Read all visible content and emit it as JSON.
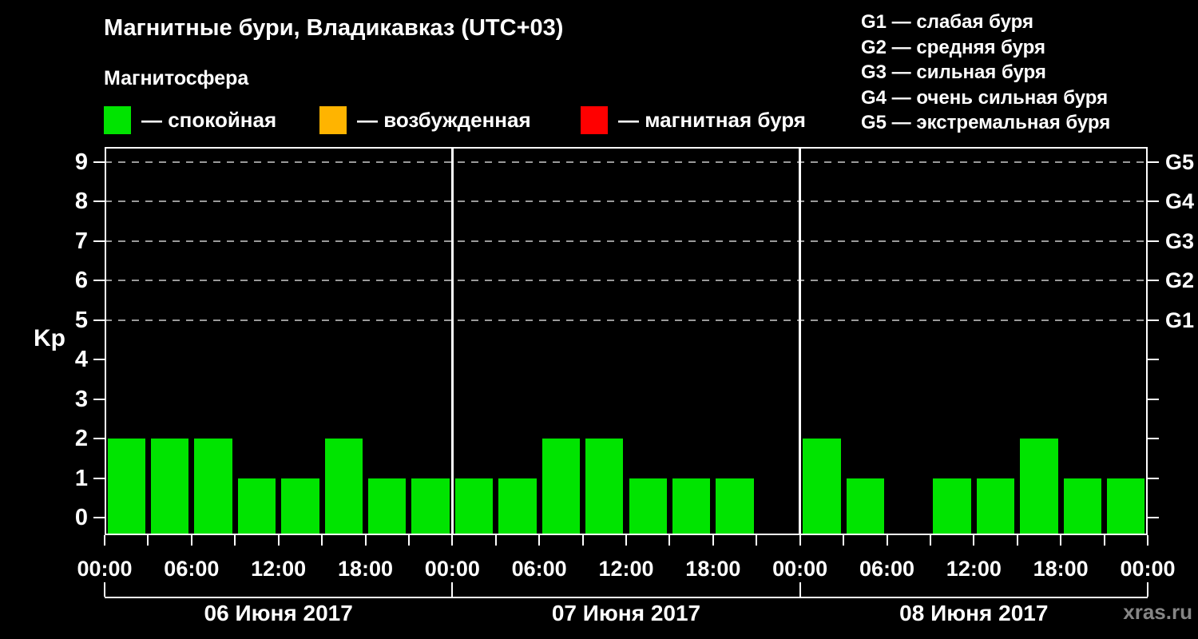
{
  "watermark": "xras.ru",
  "chart_data": {
    "type": "bar",
    "title": "Магнитные бури, Владикавказ (UTC+03)",
    "subtitle": "Магнитосфера",
    "xlabel": "",
    "ylabel": "Kp",
    "ylim": [
      0,
      9
    ],
    "yticks": [
      0,
      1,
      2,
      3,
      4,
      5,
      6,
      7,
      8,
      9
    ],
    "grid": true,
    "grid_at_kp": [
      5,
      6,
      7,
      8,
      9
    ],
    "grid_color": "#9a9a9a",
    "legend": [
      {
        "label": "— спокойная",
        "color": "#00e400"
      },
      {
        "label": "— возбужденная",
        "color": "#ffb400"
      },
      {
        "label": "— магнитная буря",
        "color": "#ff0000"
      }
    ],
    "g_scale_legend": [
      "G1 — слабая буря",
      "G2 — средняя буря",
      "G3 — сильная буря",
      "G4 — очень сильная буря",
      "G5 — экстремальная буря"
    ],
    "right_axis": {
      "labels": [
        "G1",
        "G2",
        "G3",
        "G4",
        "G5"
      ],
      "at_kp": [
        5,
        6,
        7,
        8,
        9
      ]
    },
    "interval_hours": 3,
    "x_tick_labels": [
      "00:00",
      "06:00",
      "12:00",
      "18:00",
      "00:00",
      "06:00",
      "12:00",
      "18:00",
      "00:00",
      "06:00",
      "12:00",
      "18:00",
      "00:00"
    ],
    "days": [
      {
        "date": "06 Июня 2017",
        "values": [
          2,
          2,
          2,
          1,
          1,
          2,
          1,
          1
        ]
      },
      {
        "date": "07 Июня 2017",
        "values": [
          1,
          1,
          2,
          2,
          1,
          1,
          1,
          0
        ]
      },
      {
        "date": "08 Июня 2017",
        "values": [
          2,
          1,
          0,
          1,
          1,
          2,
          1,
          1
        ]
      }
    ],
    "colors": {
      "quiet": "#00e400",
      "active": "#ffb400",
      "storm": "#ff0000",
      "background": "#000000",
      "axis": "#ffffff"
    }
  }
}
